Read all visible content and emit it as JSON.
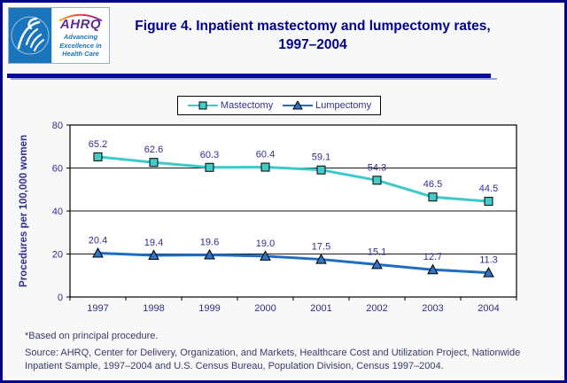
{
  "header": {
    "logo": {
      "org_abbrev": "AHRQ",
      "tagline": "Advancing Excellence in Health Care"
    },
    "title_line1": "Figure 4. Inpatient mastectomy and lumpectomy rates,",
    "title_line2": "1997–2004"
  },
  "colors": {
    "outer_border": "#00008B",
    "title_text": "#00008B",
    "divider": "#0A0AA0",
    "divider_shadow": "#93A2D8",
    "axis_text": "#2F2F8F",
    "footnote_text": "#3A3A6A",
    "plot_background": "#FFFFFF",
    "page_background": "#F8F8F8"
  },
  "chart_data": {
    "type": "line",
    "categories": [
      "1997",
      "1998",
      "1999",
      "2000",
      "2001",
      "2002",
      "2003",
      "2004"
    ],
    "series": [
      {
        "name": "Mastectomy",
        "marker": "square",
        "color": "#3BC9C9",
        "marker_fill": "#45CACA",
        "values": [
          65.2,
          62.6,
          60.3,
          60.4,
          59.1,
          54.3,
          46.5,
          44.5
        ]
      },
      {
        "name": "Lumpectomy",
        "marker": "triangle",
        "color": "#1F6DC1",
        "marker_fill": "#2E73C4",
        "values": [
          20.4,
          19.4,
          19.6,
          19.0,
          17.5,
          15.1,
          12.7,
          11.3
        ]
      }
    ],
    "title": "Figure 4. Inpatient mastectomy and lumpectomy rates, 1997–2004",
    "xlabel": "",
    "ylabel": "Procedures  per 100,000 women",
    "ylim": [
      0,
      80
    ],
    "yticks": [
      0,
      20,
      40,
      60,
      80
    ],
    "grid": true,
    "legend_position": "top-center",
    "data_labels": true
  },
  "footnotes": {
    "note": "*Based on principal procedure.",
    "source": "Source: AHRQ, Center for Delivery, Organization, and Markets, Healthcare Cost and Utilization Project, Nationwide Inpatient Sample, 1997–2004 and U.S. Census Bureau, Population Division, Census 1997–2004."
  }
}
